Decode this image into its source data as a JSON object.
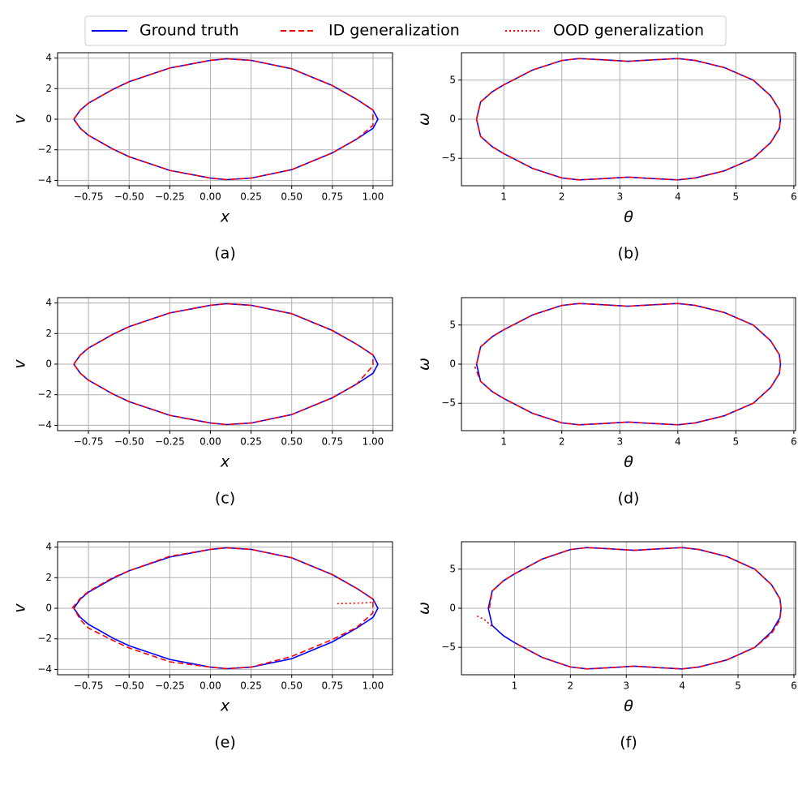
{
  "chart_data": [
    {
      "type": "line",
      "caption": "(a)",
      "xlabel": "x",
      "ylabel": "v",
      "grid": true,
      "xlim": [
        -0.94,
        1.12
      ],
      "ylim": [
        -4.35,
        4.35
      ],
      "xticks": [
        {
          "value": -0.75,
          "label": "−0.75"
        },
        {
          "value": -0.5,
          "label": "−0.50"
        },
        {
          "value": -0.25,
          "label": "−0.25"
        },
        {
          "value": 0,
          "label": "0.00"
        },
        0.25,
        {
          "value": 0.5,
          "label": "0.50"
        },
        0.75,
        {
          "value": 1,
          "label": "1.00"
        }
      ],
      "yticks": [
        {
          "value": -4,
          "label": "−4"
        },
        {
          "value": -2,
          "label": "−2"
        },
        0,
        2,
        4
      ],
      "series": [
        {
          "name": "Ground truth",
          "color": "#0000ff",
          "linestyle": "solid",
          "x": [
            -0.84,
            -0.8,
            -0.75,
            -0.6,
            -0.5,
            -0.25,
            0,
            0.1,
            0.25,
            0.5,
            0.75,
            0.9,
            1.0,
            1.03,
            1.0,
            0.9,
            0.75,
            0.5,
            0.25,
            0.1,
            0,
            -0.25,
            -0.5,
            -0.6,
            -0.75,
            -0.8,
            -0.84
          ],
          "values": [
            0,
            0.6,
            1.05,
            1.95,
            2.45,
            3.35,
            3.85,
            3.95,
            3.85,
            3.3,
            2.2,
            1.3,
            0.6,
            0,
            -0.6,
            -1.3,
            -2.2,
            -3.3,
            -3.85,
            -3.95,
            -3.85,
            -3.35,
            -2.45,
            -1.95,
            -1.05,
            -0.6,
            0
          ]
        },
        {
          "name": "ID generalization",
          "color": "#ff0000",
          "linestyle": "dashed",
          "x": [
            -0.84,
            -0.8,
            -0.75,
            -0.6,
            -0.5,
            -0.25,
            0,
            0.1,
            0.25,
            0.5,
            0.75,
            0.9,
            1.0,
            1.0,
            0.9,
            0.75,
            0.5,
            0.25,
            0.1,
            0,
            -0.25,
            -0.5,
            -0.6,
            -0.75,
            -0.8,
            -0.84
          ],
          "values": [
            0,
            0.6,
            1.05,
            1.95,
            2.45,
            3.35,
            3.85,
            3.95,
            3.85,
            3.3,
            2.2,
            1.3,
            0.6,
            -0.4,
            -1.3,
            -2.2,
            -3.3,
            -3.85,
            -3.95,
            -3.85,
            -3.35,
            -2.45,
            -1.95,
            -1.05,
            -0.6,
            0
          ]
        }
      ]
    },
    {
      "type": "line",
      "caption": "(b)",
      "xlabel": "θ",
      "ylabel": "ω",
      "grid": true,
      "xlim": [
        0.27,
        6.03
      ],
      "ylim": [
        -8.5,
        8.5
      ],
      "xticks": [
        1,
        2,
        3,
        4,
        5,
        6
      ],
      "yticks": [
        {
          "value": -5,
          "label": "−5"
        },
        0,
        5
      ],
      "series": [
        {
          "name": "Ground truth",
          "color": "#0000ff",
          "linestyle": "solid",
          "x": [
            0.53,
            0.6,
            0.8,
            1.0,
            1.5,
            2.0,
            2.3,
            2.7,
            3.14,
            3.6,
            4.0,
            4.3,
            4.8,
            5.3,
            5.6,
            5.75,
            5.77,
            5.75,
            5.6,
            5.3,
            4.8,
            4.3,
            4.0,
            3.6,
            3.14,
            2.7,
            2.3,
            2.0,
            1.5,
            1.0,
            0.8,
            0.6,
            0.53
          ],
          "values": [
            0,
            2.2,
            3.5,
            4.4,
            6.3,
            7.5,
            7.75,
            7.6,
            7.4,
            7.6,
            7.75,
            7.5,
            6.6,
            5.0,
            3.0,
            1.2,
            0,
            -1.2,
            -3,
            -5,
            -6.6,
            -7.5,
            -7.75,
            -7.6,
            -7.4,
            -7.6,
            -7.75,
            -7.5,
            -6.3,
            -4.4,
            -3.5,
            -2.2,
            0
          ]
        },
        {
          "name": "ID generalization",
          "color": "#ff0000",
          "linestyle": "dashed",
          "x": [
            0.53,
            0.6,
            0.8,
            1.0,
            1.5,
            2.0,
            2.3,
            2.7,
            3.14,
            3.6,
            4.0,
            4.3,
            4.8,
            5.3,
            5.6,
            5.75,
            5.77,
            5.75,
            5.6,
            5.3,
            4.8,
            4.3,
            4.0,
            3.6,
            3.14,
            2.7,
            2.3,
            2.0,
            1.5,
            1.0,
            0.8,
            0.6,
            0.53
          ],
          "values": [
            0,
            2.2,
            3.5,
            4.4,
            6.3,
            7.5,
            7.75,
            7.6,
            7.4,
            7.6,
            7.75,
            7.5,
            6.6,
            5.0,
            3.0,
            1.2,
            0,
            -1.2,
            -3,
            -5,
            -6.6,
            -7.5,
            -7.75,
            -7.6,
            -7.4,
            -7.6,
            -7.75,
            -7.5,
            -6.3,
            -4.4,
            -3.5,
            -2.2,
            0
          ]
        }
      ]
    },
    {
      "type": "line",
      "caption": "(c)",
      "xlabel": "x",
      "ylabel": "v",
      "grid": true,
      "xlim": [
        -0.94,
        1.12
      ],
      "ylim": [
        -4.35,
        4.35
      ],
      "xticks": [
        {
          "value": -0.75,
          "label": "−0.75"
        },
        {
          "value": -0.5,
          "label": "−0.50"
        },
        {
          "value": -0.25,
          "label": "−0.25"
        },
        {
          "value": 0,
          "label": "0.00"
        },
        0.25,
        {
          "value": 0.5,
          "label": "0.50"
        },
        0.75,
        {
          "value": 1,
          "label": "1.00"
        }
      ],
      "yticks": [
        {
          "value": -4,
          "label": "−4"
        },
        {
          "value": -2,
          "label": "−2"
        },
        0,
        2,
        4
      ],
      "series": [
        {
          "name": "Ground truth",
          "color": "#0000ff",
          "linestyle": "solid",
          "x": [
            -0.84,
            -0.8,
            -0.75,
            -0.6,
            -0.5,
            -0.25,
            0,
            0.1,
            0.25,
            0.5,
            0.75,
            0.9,
            1.0,
            1.03,
            1.0,
            0.9,
            0.75,
            0.5,
            0.25,
            0.1,
            0,
            -0.25,
            -0.5,
            -0.6,
            -0.75,
            -0.8,
            -0.84
          ],
          "values": [
            0,
            0.6,
            1.05,
            1.95,
            2.45,
            3.35,
            3.85,
            3.95,
            3.85,
            3.3,
            2.2,
            1.3,
            0.6,
            0,
            -0.6,
            -1.3,
            -2.2,
            -3.3,
            -3.85,
            -3.95,
            -3.85,
            -3.35,
            -2.45,
            -1.95,
            -1.05,
            -0.6,
            0
          ]
        },
        {
          "name": "ID generalization",
          "color": "#ff0000",
          "linestyle": "dashed",
          "x": [
            -0.84,
            -0.8,
            -0.75,
            -0.6,
            -0.5,
            -0.25,
            0,
            0.1,
            0.25,
            0.5,
            0.75,
            0.9,
            1.0,
            1.0,
            0.9,
            0.75,
            0.5,
            0.25,
            0.1,
            0,
            -0.25,
            -0.5,
            -0.6,
            -0.75,
            -0.8,
            -0.84
          ],
          "values": [
            0,
            0.6,
            1.05,
            1.95,
            2.45,
            3.35,
            3.85,
            3.95,
            3.85,
            3.3,
            2.2,
            1.3,
            0.6,
            -0.1,
            -1.3,
            -2.2,
            -3.3,
            -3.85,
            -3.95,
            -3.85,
            -3.35,
            -2.45,
            -1.95,
            -1.05,
            -0.6,
            0
          ]
        }
      ]
    },
    {
      "type": "line",
      "caption": "(d)",
      "xlabel": "θ",
      "ylabel": "ω",
      "grid": true,
      "xlim": [
        0.27,
        6.03
      ],
      "ylim": [
        -8.5,
        8.5
      ],
      "xticks": [
        1,
        2,
        3,
        4,
        5,
        6
      ],
      "yticks": [
        {
          "value": -5,
          "label": "−5"
        },
        0,
        5
      ],
      "series": [
        {
          "name": "Ground truth",
          "color": "#0000ff",
          "linestyle": "solid",
          "x": [
            0.53,
            0.6,
            0.8,
            1.0,
            1.5,
            2.0,
            2.3,
            2.7,
            3.14,
            3.6,
            4.0,
            4.3,
            4.8,
            5.3,
            5.6,
            5.75,
            5.77,
            5.75,
            5.6,
            5.3,
            4.8,
            4.3,
            4.0,
            3.6,
            3.14,
            2.7,
            2.3,
            2.0,
            1.5,
            1.0,
            0.8,
            0.6,
            0.53
          ],
          "values": [
            0,
            2.2,
            3.5,
            4.4,
            6.3,
            7.5,
            7.75,
            7.6,
            7.4,
            7.6,
            7.75,
            7.5,
            6.6,
            5.0,
            3.0,
            1.2,
            0,
            -1.2,
            -3,
            -5,
            -6.6,
            -7.5,
            -7.75,
            -7.6,
            -7.4,
            -7.6,
            -7.75,
            -7.5,
            -6.3,
            -4.4,
            -3.5,
            -2.2,
            0
          ]
        },
        {
          "name": "ID generalization",
          "color": "#ff0000",
          "linestyle": "dashed",
          "x": [
            0.53,
            0.6,
            0.8,
            1.0,
            1.5,
            2.0,
            2.3,
            2.7,
            3.14,
            3.6,
            4.0,
            4.3,
            4.8,
            5.3,
            5.6,
            5.75,
            5.77,
            5.75,
            5.6,
            5.3,
            4.8,
            4.3,
            4.0,
            3.6,
            3.14,
            2.7,
            2.3,
            2.0,
            1.5,
            1.0,
            0.8,
            0.6,
            0.5
          ],
          "values": [
            0,
            2.2,
            3.5,
            4.4,
            6.3,
            7.5,
            7.75,
            7.6,
            7.4,
            7.6,
            7.75,
            7.5,
            6.6,
            5.0,
            3.0,
            1.2,
            0,
            -1.2,
            -3,
            -5,
            -6.6,
            -7.5,
            -7.75,
            -7.6,
            -7.4,
            -7.6,
            -7.75,
            -7.5,
            -6.3,
            -4.4,
            -3.5,
            -2.2,
            -0.3
          ]
        }
      ]
    },
    {
      "type": "line",
      "caption": "(e)",
      "xlabel": "x",
      "ylabel": "v",
      "grid": true,
      "xlim": [
        -0.94,
        1.12
      ],
      "ylim": [
        -4.35,
        4.35
      ],
      "xticks": [
        {
          "value": -0.75,
          "label": "−0.75"
        },
        {
          "value": -0.5,
          "label": "−0.50"
        },
        {
          "value": -0.25,
          "label": "−0.25"
        },
        {
          "value": 0,
          "label": "0.00"
        },
        0.25,
        {
          "value": 0.5,
          "label": "0.50"
        },
        0.75,
        {
          "value": 1,
          "label": "1.00"
        }
      ],
      "yticks": [
        {
          "value": -4,
          "label": "−4"
        },
        {
          "value": -2,
          "label": "−2"
        },
        0,
        2,
        4
      ],
      "series": [
        {
          "name": "Ground truth",
          "color": "#0000ff",
          "linestyle": "solid",
          "x": [
            -0.84,
            -0.8,
            -0.75,
            -0.6,
            -0.5,
            -0.25,
            0,
            0.1,
            0.25,
            0.5,
            0.75,
            0.9,
            1.0,
            1.03,
            1.0,
            0.9,
            0.75,
            0.5,
            0.25,
            0.1,
            0,
            -0.25,
            -0.5,
            -0.6,
            -0.75,
            -0.8,
            -0.84
          ],
          "values": [
            0,
            0.6,
            1.05,
            1.95,
            2.45,
            3.35,
            3.85,
            3.95,
            3.85,
            3.3,
            2.2,
            1.3,
            0.6,
            0,
            -0.6,
            -1.3,
            -2.2,
            -3.3,
            -3.85,
            -3.95,
            -3.85,
            -3.35,
            -2.45,
            -1.95,
            -1.05,
            -0.6,
            0
          ]
        },
        {
          "name": "ID generalization",
          "color": "#ff0000",
          "linestyle": "dashed",
          "x": [
            -0.85,
            -0.8,
            -0.75,
            -0.6,
            -0.5,
            -0.25,
            0,
            0.1,
            0.25,
            0.5,
            0.75,
            0.9,
            1.0,
            1.0,
            0.9,
            0.75,
            0.5,
            0.25,
            0.1,
            0,
            -0.25,
            -0.5,
            -0.6,
            -0.75,
            -0.8,
            -0.84
          ],
          "values": [
            0,
            0.65,
            1.1,
            2.0,
            2.45,
            3.4,
            3.85,
            3.95,
            3.85,
            3.3,
            2.2,
            1.3,
            0.6,
            -0.3,
            -1.25,
            -2.05,
            -3.15,
            -3.85,
            -3.95,
            -3.85,
            -3.5,
            -2.6,
            -2.1,
            -1.3,
            -0.75,
            0
          ]
        },
        {
          "name": "OOD generalization",
          "color": "#ff0000",
          "linestyle": "dotted",
          "x": [
            0.78,
            0.85,
            0.95,
            1.0,
            1.03
          ],
          "values": [
            0.3,
            0.32,
            0.35,
            0.4,
            0.45
          ]
        }
      ]
    },
    {
      "type": "line",
      "caption": "(f)",
      "xlabel": "θ",
      "ylabel": "ω",
      "grid": true,
      "xlim": [
        0.05,
        6.03
      ],
      "ylim": [
        -8.5,
        8.5
      ],
      "xticks": [
        1,
        2,
        3,
        4,
        5,
        6
      ],
      "yticks": [
        {
          "value": -5,
          "label": "−5"
        },
        0,
        5
      ],
      "series": [
        {
          "name": "Ground truth",
          "color": "#0000ff",
          "linestyle": "solid",
          "x": [
            0.53,
            0.6,
            0.8,
            1.0,
            1.5,
            2.0,
            2.3,
            2.7,
            3.14,
            3.6,
            4.0,
            4.3,
            4.8,
            5.3,
            5.6,
            5.75,
            5.77,
            5.75,
            5.6,
            5.3,
            4.8,
            4.3,
            4.0,
            3.6,
            3.14,
            2.7,
            2.3,
            2.0,
            1.5,
            1.0,
            0.8,
            0.6,
            0.53
          ],
          "values": [
            0,
            2.2,
            3.5,
            4.4,
            6.3,
            7.5,
            7.75,
            7.6,
            7.4,
            7.6,
            7.75,
            7.5,
            6.6,
            5.0,
            3.0,
            1.2,
            0,
            -1.2,
            -3,
            -5,
            -6.6,
            -7.5,
            -7.75,
            -7.6,
            -7.4,
            -7.6,
            -7.75,
            -7.5,
            -6.3,
            -4.4,
            -3.5,
            -2.2,
            0
          ]
        },
        {
          "name": "ID generalization",
          "color": "#ff0000",
          "linestyle": "dashed",
          "x": [
            0.55,
            0.6,
            0.8,
            1.0,
            1.5,
            2.0,
            2.3,
            2.7,
            3.14,
            3.6,
            4.0,
            4.3,
            4.8,
            5.3,
            5.6,
            5.75,
            5.77,
            5.75,
            5.6,
            5.3,
            4.8,
            4.3,
            4.0,
            3.6,
            3.14,
            2.7,
            2.3,
            2.0,
            1.5,
            1.0
          ],
          "values": [
            0,
            2.2,
            3.5,
            4.4,
            6.3,
            7.5,
            7.75,
            7.6,
            7.4,
            7.6,
            7.75,
            7.5,
            6.6,
            5.0,
            3.0,
            1.2,
            0,
            -1.5,
            -3.2,
            -5,
            -6.6,
            -7.5,
            -7.75,
            -7.6,
            -7.4,
            -7.6,
            -7.75,
            -7.5,
            -6.3,
            -4.4
          ]
        },
        {
          "name": "OOD generalization",
          "color": "#ff0000",
          "linestyle": "dotted",
          "x": [
            0.33,
            0.45,
            0.55,
            0.62
          ],
          "values": [
            -1.0,
            -1.4,
            -2.0,
            -2.5
          ]
        }
      ]
    }
  ]
}
